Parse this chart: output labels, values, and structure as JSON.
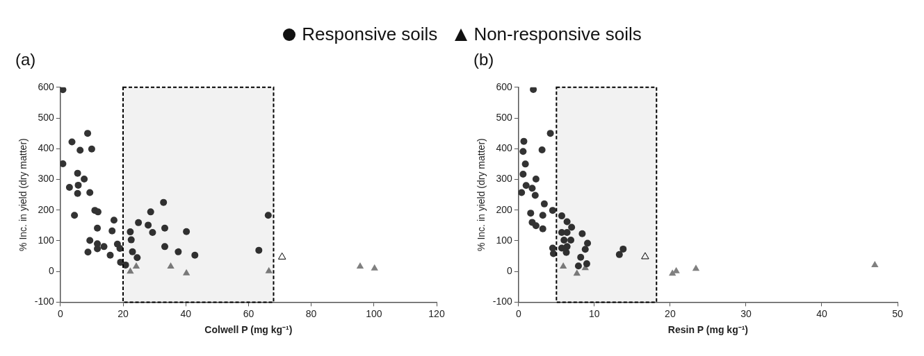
{
  "chart_data": [
    {
      "type": "scatter",
      "title": "(a)",
      "xlabel": "Colwell P (mg kg⁻¹)",
      "ylabel": "% Inc. in yield (dry matter)",
      "xlim": [
        0,
        120
      ],
      "xticks": [
        0,
        20,
        40,
        60,
        80,
        100,
        120
      ],
      "ylim": [
        -100,
        600
      ],
      "yticks": [
        -100,
        0,
        100,
        200,
        300,
        400,
        500,
        600
      ],
      "grid": false,
      "legend": "top",
      "bands": [
        {
          "axis": "x",
          "from": 20,
          "to": 68,
          "color": "#000000"
        }
      ],
      "series": [
        {
          "name": "Responsive soils",
          "color": "#333333",
          "marker": "circle",
          "x": [
            0.8,
            0.8,
            3.7,
            2.9,
            8.7,
            6.3,
            10,
            5.5,
            7.6,
            5.7,
            5.5,
            4.5,
            9.4,
            11,
            12,
            11.8,
            9.4,
            8.8,
            11.8,
            11.8,
            13.9,
            15.9,
            17.1,
            16.5,
            18.2,
            19,
            19.2,
            20.8,
            22.3,
            22.6,
            23,
            24.5,
            24.9,
            28,
            29.4,
            28.8,
            32.9,
            33.3,
            33.3,
            37.6,
            40.2,
            42.9,
            63.3,
            66.3
          ],
          "values": [
            592,
            351,
            422,
            274,
            450,
            395,
            399,
            320,
            301,
            281,
            254,
            183,
            257,
            199,
            194,
            141,
            101,
            63,
            90,
            74,
            81,
            53,
            167,
            132,
            89,
            75,
            30,
            21,
            129,
            103,
            64,
            45,
            159,
            151,
            127,
            194,
            225,
            141,
            81,
            64,
            130,
            53,
            69,
            183
          ]
        },
        {
          "name": "Non-responsive soils",
          "color": "#808080",
          "marker": "triangle",
          "x": [
            22.3,
            24.2,
            35.2,
            40.2,
            66.5,
            95.6,
            100.2
          ],
          "values": [
            0,
            16,
            16,
            -6,
            1,
            16,
            10
          ]
        },
        {
          "color": "#ffffff",
          "marker": "triangle",
          "x": [
            70.7
          ],
          "values": [
            47
          ]
        }
      ]
    },
    {
      "type": "scatter",
      "title": "(b)",
      "xlabel": "Resin P (mg kg⁻¹)",
      "ylabel": "% Inc. in yield (dry matter)",
      "xlim": [
        0,
        50
      ],
      "xticks": [
        0,
        10,
        20,
        30,
        40,
        50
      ],
      "ylim": [
        -100,
        600
      ],
      "yticks": [
        -100,
        0,
        100,
        200,
        300,
        400,
        500,
        600
      ],
      "grid": false,
      "bands": [
        {
          "axis": "x",
          "from": 5,
          "to": 18.2,
          "color": "#000000"
        }
      ],
      "series": [
        {
          "color": "#333333",
          "marker": "circle",
          "x": [
            1.95,
            4.2,
            0.7,
            0.6,
            0.9,
            3.1,
            0.6,
            1.0,
            0.4,
            2.3,
            1.8,
            2.2,
            1.6,
            1.8,
            2.3,
            3.2,
            3.4,
            3.2,
            4.5,
            4.5,
            4.6,
            5.7,
            6.4,
            7.0,
            5.7,
            6.4,
            6.9,
            6.0,
            5.7,
            6.3,
            8.4,
            9.1,
            8.8,
            8.2,
            7.9,
            9.0,
            6.4,
            13.3,
            13.8
          ],
          "values": [
            593,
            450,
            424,
            391,
            350,
            396,
            317,
            280,
            257,
            301,
            271,
            248,
            190,
            160,
            149,
            139,
            220,
            183,
            199,
            76,
            58,
            181,
            162,
            144,
            127,
            127,
            102,
            102,
            76,
            62,
            123,
            92,
            72,
            46,
            18,
            25,
            81,
            55,
            73
          ]
        },
        {
          "color": "#808080",
          "marker": "triangle",
          "x": [
            5.9,
            7.7,
            8.8,
            20.3,
            20.8,
            23.4,
            47
          ],
          "values": [
            16,
            -7,
            11,
            -7,
            1,
            9,
            21
          ]
        },
        {
          "color": "#ffffff",
          "marker": "triangle",
          "x": [
            16.7
          ],
          "values": [
            48
          ]
        }
      ]
    }
  ]
}
